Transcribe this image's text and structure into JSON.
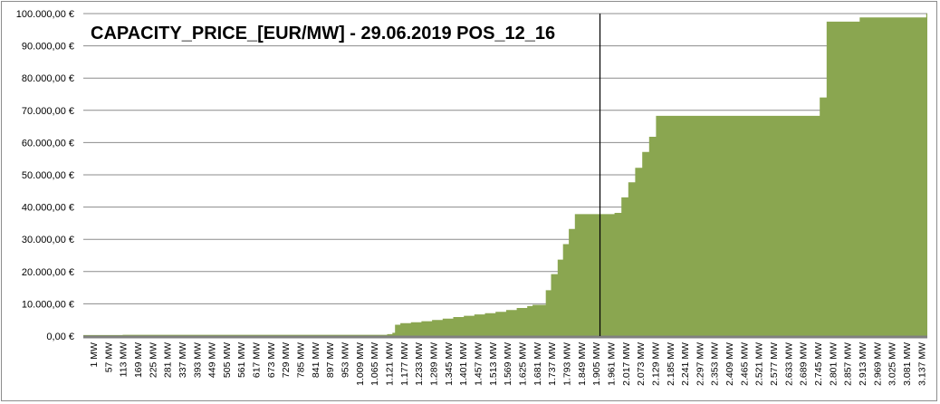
{
  "chart_data": {
    "type": "area",
    "title": "CAPACITY_PRICE_[EUR/MW] - 29.06.2019 POS_12_16",
    "xlabel": "",
    "ylabel": "",
    "xlim": [
      1,
      3193
    ],
    "ylim": [
      0,
      100000
    ],
    "y_ticks": [
      0,
      10000,
      20000,
      30000,
      40000,
      50000,
      60000,
      70000,
      80000,
      90000,
      100000
    ],
    "y_tick_labels": [
      "0,00 €",
      "10.000,00 €",
      "20.000,00 €",
      "30.000,00 €",
      "40.000,00 €",
      "50.000,00 €",
      "60.000,00 €",
      "70.000,00 €",
      "80.000,00 €",
      "90.000,00 €",
      "100.000,00 €"
    ],
    "x_tick_labels": [
      "1 MW",
      "57 MW",
      "113 MW",
      "169 MW",
      "225 MW",
      "281 MW",
      "337 MW",
      "393 MW",
      "449 MW",
      "505 MW",
      "561 MW",
      "617 MW",
      "673 MW",
      "729 MW",
      "785 MW",
      "841 MW",
      "897 MW",
      "953 MW",
      "1.009 MW",
      "1.065 MW",
      "1.121 MW",
      "1.177 MW",
      "1.233 MW",
      "1.289 MW",
      "1.345 MW",
      "1.401 MW",
      "1.457 MW",
      "1.513 MW",
      "1.569 MW",
      "1.625 MW",
      "1.681 MW",
      "1.737 MW",
      "1.793 MW",
      "1.849 MW",
      "1.905 MW",
      "1.961 MW",
      "2.017 MW",
      "2.073 MW",
      "2.129 MW",
      "2.185 MW",
      "2.241 MW",
      "2.297 MW",
      "2.353 MW",
      "2.409 MW",
      "2.465 MW",
      "2.521 MW",
      "2.577 MW",
      "2.633 MW",
      "2.689 MW",
      "2.745 MW",
      "2.801 MW",
      "2.857 MW",
      "2.913 MW",
      "2.969 MW",
      "3.025 MW",
      "3.081 MW",
      "3.137 MW"
    ],
    "grid": true,
    "series": [
      {
        "color": "#8aa650",
        "step": "after",
        "points": [
          [
            1,
            300
          ],
          [
            150,
            400
          ],
          [
            500,
            400
          ],
          [
            1150,
            600
          ],
          [
            1170,
            1000
          ],
          [
            1180,
            3500
          ],
          [
            1200,
            4000
          ],
          [
            1240,
            4300
          ],
          [
            1280,
            4600
          ],
          [
            1320,
            5000
          ],
          [
            1360,
            5400
          ],
          [
            1400,
            5900
          ],
          [
            1440,
            6300
          ],
          [
            1480,
            6700
          ],
          [
            1520,
            7100
          ],
          [
            1560,
            7500
          ],
          [
            1600,
            8100
          ],
          [
            1640,
            8700
          ],
          [
            1680,
            9300
          ],
          [
            1700,
            9700
          ],
          [
            1750,
            14200
          ],
          [
            1770,
            19200
          ],
          [
            1795,
            23700
          ],
          [
            1815,
            28500
          ],
          [
            1837,
            33200
          ],
          [
            1860,
            37800
          ],
          [
            2010,
            38200
          ],
          [
            2036,
            43000
          ],
          [
            2062,
            47700
          ],
          [
            2088,
            52200
          ],
          [
            2115,
            57100
          ],
          [
            2141,
            61800
          ],
          [
            2167,
            68300
          ],
          [
            2786,
            74000
          ],
          [
            2812,
            97500
          ],
          [
            2937,
            98800
          ],
          [
            3189,
            100000
          ],
          [
            3193,
            100000
          ]
        ]
      }
    ],
    "marker_line_x": 1955,
    "marker_line_color": "#000000"
  }
}
